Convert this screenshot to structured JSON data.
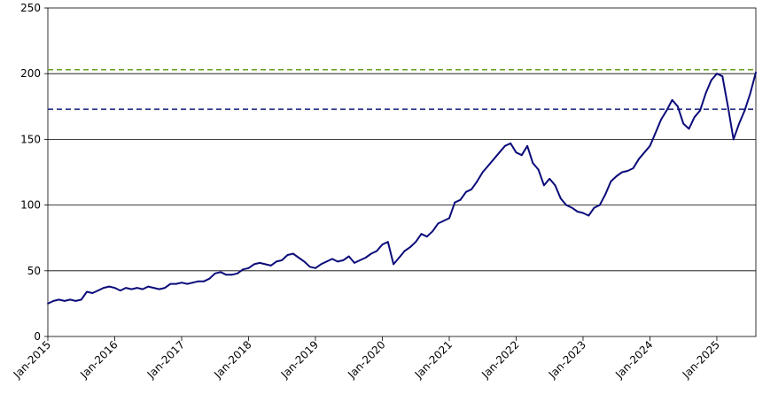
{
  "chart_data": {
    "type": "line",
    "title": "",
    "xlabel": "",
    "ylabel": "",
    "xlim": [
      "2015-01",
      "2025-08"
    ],
    "ylim": [
      0,
      250
    ],
    "grid": "horizontal",
    "legend": "none",
    "y_ticks": [
      "0",
      "50",
      "100",
      "150",
      "200",
      "250"
    ],
    "x_ticks": [
      {
        "date": "2015-01",
        "label": "Jan-2015"
      },
      {
        "date": "2016-01",
        "label": "Jan-2016"
      },
      {
        "date": "2017-01",
        "label": "Jan-2017"
      },
      {
        "date": "2018-01",
        "label": "Jan-2018"
      },
      {
        "date": "2019-01",
        "label": "Jan-2019"
      },
      {
        "date": "2020-01",
        "label": "Jan-2020"
      },
      {
        "date": "2021-01",
        "label": "Jan-2021"
      },
      {
        "date": "2022-01",
        "label": "Jan-2022"
      },
      {
        "date": "2023-01",
        "label": "Jan-2023"
      },
      {
        "date": "2024-01",
        "label": "Jan-2024"
      },
      {
        "date": "2025-01",
        "label": "Jan-2025"
      }
    ],
    "reference_lines": [
      {
        "value": 203,
        "color": "#6aa121",
        "style": "dashed"
      },
      {
        "value": 173,
        "color": "#1a237e",
        "style": "dashed"
      }
    ],
    "series": [
      {
        "color": "#0b0b7a",
        "points": [
          [
            "2015-01",
            25
          ],
          [
            "2015-02",
            27
          ],
          [
            "2015-03",
            28
          ],
          [
            "2015-04",
            27
          ],
          [
            "2015-05",
            28
          ],
          [
            "2015-06",
            27
          ],
          [
            "2015-07",
            28
          ],
          [
            "2015-08",
            34
          ],
          [
            "2015-09",
            33
          ],
          [
            "2015-10",
            35
          ],
          [
            "2015-11",
            37
          ],
          [
            "2015-12",
            38
          ],
          [
            "2016-01",
            37
          ],
          [
            "2016-02",
            35
          ],
          [
            "2016-03",
            37
          ],
          [
            "2016-04",
            36
          ],
          [
            "2016-05",
            37
          ],
          [
            "2016-06",
            36
          ],
          [
            "2016-07",
            38
          ],
          [
            "2016-08",
            37
          ],
          [
            "2016-09",
            36
          ],
          [
            "2016-10",
            37
          ],
          [
            "2016-11",
            40
          ],
          [
            "2016-12",
            40
          ],
          [
            "2017-01",
            41
          ],
          [
            "2017-02",
            40
          ],
          [
            "2017-03",
            41
          ],
          [
            "2017-04",
            42
          ],
          [
            "2017-05",
            42
          ],
          [
            "2017-06",
            44
          ],
          [
            "2017-07",
            48
          ],
          [
            "2017-08",
            49
          ],
          [
            "2017-09",
            47
          ],
          [
            "2017-10",
            47
          ],
          [
            "2017-11",
            48
          ],
          [
            "2017-12",
            51
          ],
          [
            "2018-01",
            52
          ],
          [
            "2018-02",
            55
          ],
          [
            "2018-03",
            56
          ],
          [
            "2018-04",
            55
          ],
          [
            "2018-05",
            54
          ],
          [
            "2018-06",
            57
          ],
          [
            "2018-07",
            58
          ],
          [
            "2018-08",
            62
          ],
          [
            "2018-09",
            63
          ],
          [
            "2018-10",
            60
          ],
          [
            "2018-11",
            57
          ],
          [
            "2018-12",
            53
          ],
          [
            "2019-01",
            52
          ],
          [
            "2019-02",
            55
          ],
          [
            "2019-03",
            57
          ],
          [
            "2019-04",
            59
          ],
          [
            "2019-05",
            57
          ],
          [
            "2019-06",
            58
          ],
          [
            "2019-07",
            61
          ],
          [
            "2019-08",
            56
          ],
          [
            "2019-09",
            58
          ],
          [
            "2019-10",
            60
          ],
          [
            "2019-11",
            63
          ],
          [
            "2019-12",
            65
          ],
          [
            "2020-01",
            70
          ],
          [
            "2020-02",
            72
          ],
          [
            "2020-03",
            55
          ],
          [
            "2020-04",
            60
          ],
          [
            "2020-05",
            65
          ],
          [
            "2020-06",
            68
          ],
          [
            "2020-07",
            72
          ],
          [
            "2020-08",
            78
          ],
          [
            "2020-09",
            76
          ],
          [
            "2020-10",
            80
          ],
          [
            "2020-11",
            86
          ],
          [
            "2020-12",
            88
          ],
          [
            "2021-01",
            90
          ],
          [
            "2021-02",
            102
          ],
          [
            "2021-03",
            104
          ],
          [
            "2021-04",
            110
          ],
          [
            "2021-05",
            112
          ],
          [
            "2021-06",
            118
          ],
          [
            "2021-07",
            125
          ],
          [
            "2021-08",
            130
          ],
          [
            "2021-09",
            135
          ],
          [
            "2021-10",
            140
          ],
          [
            "2021-11",
            145
          ],
          [
            "2021-12",
            147
          ],
          [
            "2022-01",
            140
          ],
          [
            "2022-02",
            138
          ],
          [
            "2022-03",
            145
          ],
          [
            "2022-04",
            132
          ],
          [
            "2022-05",
            127
          ],
          [
            "2022-06",
            115
          ],
          [
            "2022-07",
            120
          ],
          [
            "2022-08",
            115
          ],
          [
            "2022-09",
            105
          ],
          [
            "2022-10",
            100
          ],
          [
            "2022-11",
            98
          ],
          [
            "2022-12",
            95
          ],
          [
            "2023-01",
            94
          ],
          [
            "2023-02",
            92
          ],
          [
            "2023-03",
            98
          ],
          [
            "2023-04",
            100
          ],
          [
            "2023-05",
            108
          ],
          [
            "2023-06",
            118
          ],
          [
            "2023-07",
            122
          ],
          [
            "2023-08",
            125
          ],
          [
            "2023-09",
            126
          ],
          [
            "2023-10",
            128
          ],
          [
            "2023-11",
            135
          ],
          [
            "2023-12",
            140
          ],
          [
            "2024-01",
            145
          ],
          [
            "2024-02",
            155
          ],
          [
            "2024-03",
            165
          ],
          [
            "2024-04",
            172
          ],
          [
            "2024-05",
            180
          ],
          [
            "2024-06",
            175
          ],
          [
            "2024-07",
            162
          ],
          [
            "2024-08",
            158
          ],
          [
            "2024-09",
            167
          ],
          [
            "2024-10",
            172
          ],
          [
            "2024-11",
            185
          ],
          [
            "2024-12",
            195
          ],
          [
            "2025-01",
            200
          ],
          [
            "2025-02",
            198
          ],
          [
            "2025-03",
            175
          ],
          [
            "2025-04",
            150
          ],
          [
            "2025-05",
            162
          ],
          [
            "2025-06",
            172
          ],
          [
            "2025-07",
            185
          ],
          [
            "2025-08",
            201
          ]
        ]
      }
    ]
  }
}
